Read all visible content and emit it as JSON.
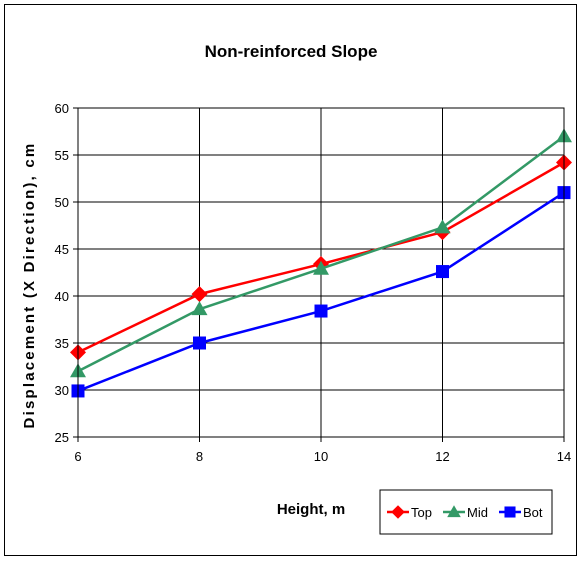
{
  "chart_data": {
    "type": "line",
    "title": "Non-reinforced Slope",
    "xlabel": "Height, m",
    "ylabel": "Displacement (X Direction), cm",
    "x": [
      6,
      8,
      10,
      12,
      14
    ],
    "xlim": [
      6,
      14
    ],
    "ylim": [
      25,
      60
    ],
    "xticks": [
      "6",
      "8",
      "10",
      "12",
      "14"
    ],
    "yticks": [
      "25",
      "30",
      "35",
      "40",
      "45",
      "50",
      "55",
      "60"
    ],
    "grid": true,
    "legend_position": "bottom-right",
    "series": [
      {
        "name": "Top",
        "color": "#ff0000",
        "marker": "diamond",
        "values": [
          34.0,
          40.2,
          43.4,
          46.8,
          54.2
        ]
      },
      {
        "name": "Mid",
        "color": "#339966",
        "marker": "triangle",
        "values": [
          32.0,
          38.6,
          42.9,
          47.3,
          57.0
        ]
      },
      {
        "name": "Bot",
        "color": "#0000ff",
        "marker": "square",
        "values": [
          29.9,
          35.0,
          38.4,
          42.6,
          51.0
        ]
      }
    ]
  }
}
